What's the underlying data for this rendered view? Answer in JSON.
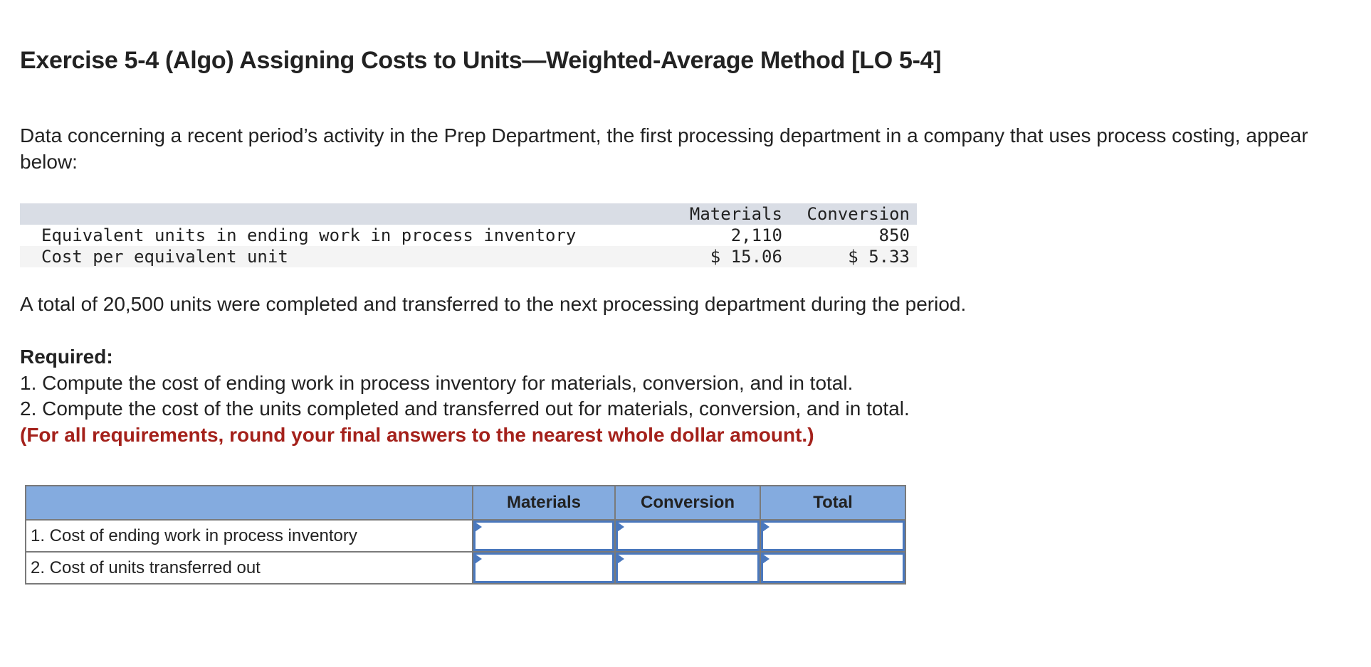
{
  "title": "Exercise 5-4 (Algo) Assigning Costs to Units—Weighted-Average Method [LO 5-4]",
  "intro": "Data concerning a recent period’s activity in the Prep Department, the first processing department in a company that uses process costing, appear below:",
  "data_table": {
    "headers": [
      "",
      "Materials",
      "Conversion"
    ],
    "rows": [
      {
        "label": "Equivalent units in ending work in process inventory",
        "materials": "2,110",
        "conversion": "850"
      },
      {
        "label": "Cost per equivalent unit",
        "materials": "$ 15.06",
        "conversion": "$ 5.33"
      }
    ]
  },
  "total_line": "A total of 20,500 units were completed and transferred to the next processing department during the period.",
  "required": {
    "heading": "Required:",
    "items": [
      "1. Compute the cost of ending work in process inventory for materials, conversion, and in total.",
      "2. Compute the cost of the units completed and transferred out for materials, conversion, and in total."
    ],
    "note": "(For all requirements, round your final answers to the nearest whole dollar amount.)"
  },
  "answer_table": {
    "headers": [
      "",
      "Materials",
      "Conversion",
      "Total"
    ],
    "rows": [
      {
        "label": "1. Cost of ending work in process inventory",
        "materials": "",
        "conversion": "",
        "total": ""
      },
      {
        "label": "2. Cost of units transferred out",
        "materials": "",
        "conversion": "",
        "total": ""
      }
    ]
  },
  "colors": {
    "header_fill": "#84abdf",
    "input_border": "#4a78bd",
    "note_red": "#a4211b",
    "data_header_band": "#d9dde5"
  }
}
